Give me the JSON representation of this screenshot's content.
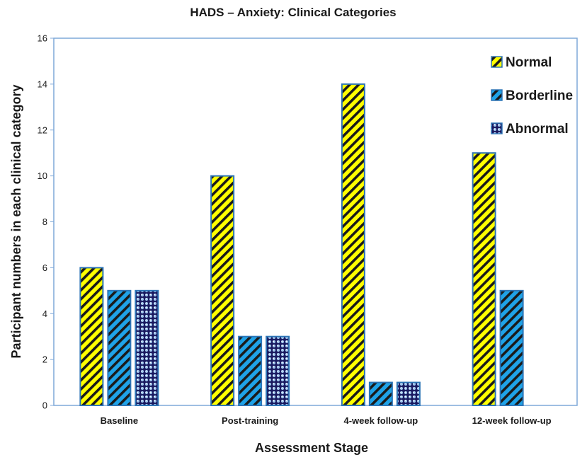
{
  "chart_data": {
    "type": "bar",
    "title": "HADS – Anxiety: Clinical Categories",
    "xlabel": "Assessment Stage",
    "ylabel": "Participant numbers in each clinical category",
    "categories": [
      "Baseline",
      "Post-training",
      "4-week follow-up",
      "12-week follow-up"
    ],
    "series": [
      {
        "name": "Normal",
        "values": [
          6,
          10,
          14,
          11
        ],
        "color": "#FFFF00",
        "pattern": "diagonal-stripes"
      },
      {
        "name": "Borderline",
        "values": [
          5,
          3,
          1,
          5
        ],
        "color": "#1FA3E8",
        "pattern": "diagonal-stripes"
      },
      {
        "name": "Abnormal",
        "values": [
          5,
          3,
          1,
          0
        ],
        "color": "#1A1A60",
        "pattern": "dots"
      }
    ],
    "ylim": [
      0,
      16
    ],
    "yticks": [
      0,
      2,
      4,
      6,
      8,
      10,
      12,
      14,
      16
    ],
    "grid": false,
    "legend_position": "top-right"
  },
  "colors": {
    "bar_outline": "#2E75B6",
    "stripe": "#1a1a1a",
    "axis": "#7fa8d8"
  }
}
